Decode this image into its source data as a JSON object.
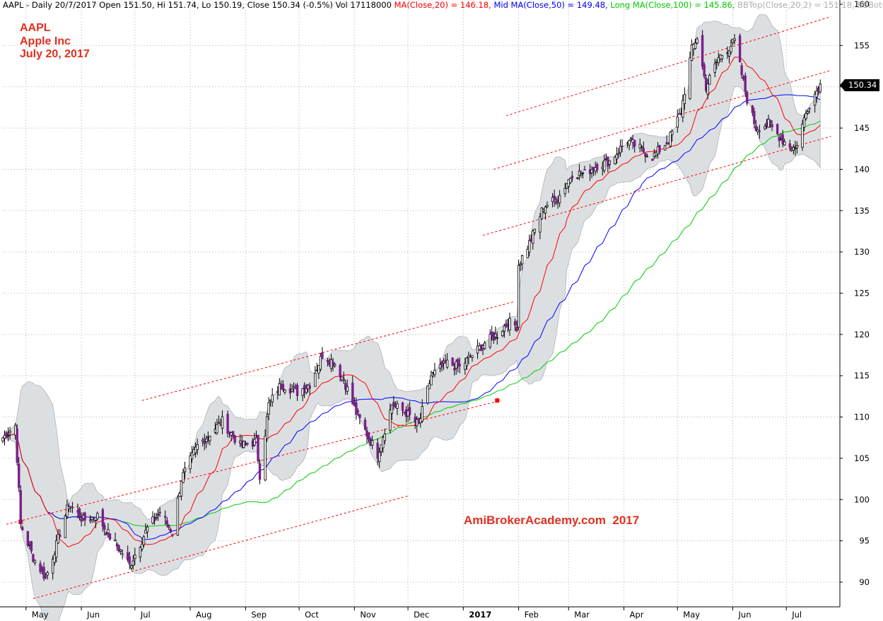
{
  "header": {
    "ticker_info": "AAPL - Daily 20/7/2017 Open 151.50, Hi 151.74, Lo 150.19, Close 150.34 (-0.5%) Vol 17118000",
    "ma20": " MA(Close,20) = 146.18,",
    "ma50": " Mid MA(Close,50) = 149.48,",
    "ma100": " Long MA(Close,100) = 145.86,",
    "bbtop": " BBTop(Close,20,2) = 151.18,",
    "bbbot": " BBBot(C"
  },
  "labels": {
    "symbol": "AAPL",
    "company": "Apple Inc",
    "date": "July 20, 2017",
    "watermark": "AmiBrokerAcademy.com  2017",
    "last_price": "150.34"
  },
  "colors": {
    "candle": "#000000",
    "candle_down": "#7b1f8c",
    "ma20": "#ff0000",
    "ma50": "#0000ff",
    "ma100": "#00cc00",
    "band_fill": "#dcdfe2",
    "band_edge": "#b0b3b6",
    "trendline": "#ff0000",
    "grid": "#b0b0b0",
    "label_red": "#e03020",
    "bbtop_text": "#b0b0b0",
    "price_tag_bg": "#000000"
  },
  "chart_data": {
    "type": "candlestick",
    "title": "AAPL - Daily 20/7/2017",
    "ylim": [
      87,
      160
    ],
    "y_ticks": [
      90,
      95,
      100,
      105,
      110,
      115,
      120,
      125,
      130,
      135,
      140,
      145,
      150,
      155,
      160
    ],
    "x_ticks": [
      "May",
      "Jun",
      "Jul",
      "Aug",
      "Sep",
      "Oct",
      "Nov",
      "Dec",
      "2017",
      "Feb",
      "Mar",
      "Apr",
      "May",
      "Jun",
      "Jul"
    ],
    "x_range": [
      "2016-04-18",
      "2017-07-31"
    ],
    "grid": true,
    "last_close": 150.34,
    "close_anchors": [
      [
        "2016-04-18",
        107.5
      ],
      [
        "2016-04-25",
        109.0
      ],
      [
        "2016-04-28",
        97.0
      ],
      [
        "2016-05-05",
        93.0
      ],
      [
        "2016-05-12",
        90.5
      ],
      [
        "2016-05-18",
        94.5
      ],
      [
        "2016-05-25",
        99.5
      ],
      [
        "2016-06-02",
        97.5
      ],
      [
        "2016-06-10",
        98.0
      ],
      [
        "2016-06-17",
        95.5
      ],
      [
        "2016-06-24",
        93.5
      ],
      [
        "2016-06-28",
        92.0
      ],
      [
        "2016-07-08",
        96.5
      ],
      [
        "2016-07-15",
        98.5
      ],
      [
        "2016-07-22",
        96.0
      ],
      [
        "2016-07-27",
        102.5
      ],
      [
        "2016-08-05",
        106.5
      ],
      [
        "2016-08-12",
        108.0
      ],
      [
        "2016-08-19",
        109.5
      ],
      [
        "2016-08-29",
        106.5
      ],
      [
        "2016-09-07",
        107.0
      ],
      [
        "2016-09-09",
        103.0
      ],
      [
        "2016-09-14",
        111.5
      ],
      [
        "2016-09-21",
        114.0
      ],
      [
        "2016-09-30",
        113.0
      ],
      [
        "2016-10-07",
        114.0
      ],
      [
        "2016-10-14",
        117.5
      ],
      [
        "2016-10-21",
        116.5
      ],
      [
        "2016-10-26",
        114.5
      ],
      [
        "2016-11-02",
        110.5
      ],
      [
        "2016-11-09",
        107.5
      ],
      [
        "2016-11-14",
        105.5
      ],
      [
        "2016-11-22",
        111.5
      ],
      [
        "2016-11-30",
        110.5
      ],
      [
        "2016-12-07",
        109.0
      ],
      [
        "2016-12-14",
        115.0
      ],
      [
        "2016-12-23",
        116.5
      ],
      [
        "2016-12-30",
        116.0
      ],
      [
        "2017-01-06",
        117.5
      ],
      [
        "2017-01-13",
        119.0
      ],
      [
        "2017-01-20",
        120.0
      ],
      [
        "2017-01-26",
        121.5
      ],
      [
        "2017-01-31",
        121.0
      ],
      [
        "2017-02-01",
        128.5
      ],
      [
        "2017-02-08",
        131.5
      ],
      [
        "2017-02-15",
        135.5
      ],
      [
        "2017-02-23",
        136.5
      ],
      [
        "2017-03-03",
        139.5
      ],
      [
        "2017-03-10",
        139.5
      ],
      [
        "2017-03-17",
        140.5
      ],
      [
        "2017-03-24",
        141.0
      ],
      [
        "2017-04-03",
        143.5
      ],
      [
        "2017-04-10",
        142.5
      ],
      [
        "2017-04-17",
        141.5
      ],
      [
        "2017-04-26",
        143.5
      ],
      [
        "2017-05-03",
        147.0
      ],
      [
        "2017-05-09",
        154.5
      ],
      [
        "2017-05-12",
        156.0
      ],
      [
        "2017-05-17",
        150.0
      ],
      [
        "2017-05-24",
        153.5
      ],
      [
        "2017-06-02",
        155.5
      ],
      [
        "2017-06-09",
        148.5
      ],
      [
        "2017-06-14",
        145.0
      ],
      [
        "2017-06-21",
        145.5
      ],
      [
        "2017-06-29",
        143.5
      ],
      [
        "2017-07-06",
        142.5
      ],
      [
        "2017-07-13",
        147.5
      ],
      [
        "2017-07-20",
        150.34
      ]
    ],
    "series": [
      {
        "name": "MA(Close,20)",
        "value": 146.18
      },
      {
        "name": "Mid MA(Close,50)",
        "value": 149.48
      },
      {
        "name": "Long MA(Close,100)",
        "value": 145.86
      },
      {
        "name": "BBTop(Close,20,2)",
        "value": 151.18
      }
    ],
    "trendlines": [
      [
        [
          "2016-05-05",
          88.0
        ],
        [
          "2016-12-02",
          100.5
        ]
      ],
      [
        [
          "2016-04-20",
          97.0
        ],
        [
          "2017-01-22",
          112.0
        ]
      ],
      [
        [
          "2016-07-05",
          112.0
        ],
        [
          "2017-01-30",
          124.0
        ]
      ],
      [
        [
          "2017-01-12",
          132.0
        ],
        [
          "2017-07-26",
          144.0
        ]
      ],
      [
        [
          "2017-01-18",
          140.0
        ],
        [
          "2017-07-26",
          152.0
        ]
      ],
      [
        [
          "2017-01-25",
          146.5
        ],
        [
          "2017-07-26",
          158.5
        ]
      ]
    ],
    "markers": [
      [
        "2016-04-28",
        97.3
      ],
      [
        "2017-01-20",
        112.0
      ]
    ]
  }
}
